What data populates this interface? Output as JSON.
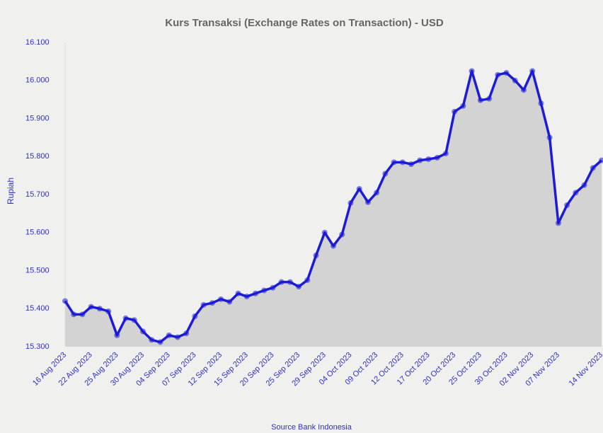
{
  "chart_data": {
    "type": "area",
    "title": "Kurs Transaksi (Exchange Rates on Transaction) - USD",
    "y_label": "Rupiah",
    "source": "Source Bank Indonesia",
    "categories": [
      "16 Aug 2023",
      null,
      null,
      "22 Aug 2023",
      null,
      null,
      "25 Aug 2023",
      null,
      null,
      "30 Aug 2023",
      null,
      null,
      "04 Sep 2023",
      null,
      null,
      "07 Sep 2023",
      null,
      null,
      "12 Sep 2023",
      null,
      null,
      "15 Sep 2023",
      null,
      null,
      "20 Sep 2023",
      null,
      null,
      "25 Sep 2023",
      null,
      null,
      "29 Sep 2023",
      null,
      null,
      "04 Oct 2023",
      null,
      null,
      "09 Oct 2023",
      null,
      null,
      "12 Oct 2023",
      null,
      null,
      "17 Oct 2023",
      null,
      null,
      "20 Oct 2023",
      null,
      null,
      "25 Oct 2023",
      null,
      null,
      "30 Oct 2023",
      null,
      null,
      "02 Nov 2023",
      null,
      null,
      "07 Nov 2023",
      null,
      null,
      null,
      null,
      "14 Nov 2023"
    ],
    "values": [
      15420,
      15385,
      15385,
      15405,
      15400,
      15393,
      15330,
      15375,
      15370,
      15340,
      15318,
      15312,
      15330,
      15325,
      15335,
      15380,
      15410,
      15415,
      15425,
      15418,
      15440,
      15432,
      15440,
      15448,
      15455,
      15470,
      15470,
      15458,
      15475,
      15540,
      15600,
      15565,
      15595,
      15678,
      15715,
      15680,
      15705,
      15755,
      15785,
      15785,
      15780,
      15790,
      15793,
      15797,
      15808,
      15918,
      15933,
      16025,
      15948,
      15952,
      16015,
      16020,
      16000,
      15975,
      16025,
      15940,
      15850,
      15625,
      15672,
      15705,
      15725,
      15770,
      15790
    ],
    "color": "#1c1cd6",
    "fill_color": "#d3d3d3",
    "ylim": [
      15300,
      16100
    ],
    "yticks": [
      {
        "value": 15300,
        "label": "15.300"
      },
      {
        "value": 15400,
        "label": "15.400"
      },
      {
        "value": 15500,
        "label": "15.500"
      },
      {
        "value": 15600,
        "label": "15.600"
      },
      {
        "value": 15700,
        "label": "15.700"
      },
      {
        "value": 15800,
        "label": "15.800"
      },
      {
        "value": 15900,
        "label": "15.900"
      },
      {
        "value": 16000,
        "label": "16.000"
      },
      {
        "value": 16100,
        "label": "16.100"
      }
    ]
  }
}
